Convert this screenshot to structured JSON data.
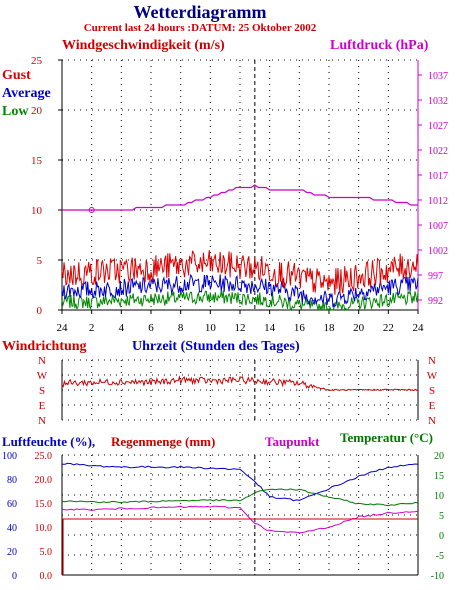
{
  "title": "Wetterdiagramm",
  "subtitle": "Current last 24 hours :DATUM: 25 Oktober 2002",
  "wind": {
    "label": "Windgeschwindigkeit (m/s)",
    "legend": [
      "Gust",
      "Average",
      "Low"
    ],
    "yticks": [
      "25",
      "20",
      "15",
      "10",
      "5",
      "0"
    ]
  },
  "pressure": {
    "label": "Luftdruck (hPa)",
    "yticks": [
      "1037",
      "1032",
      "1027",
      "1022",
      "1017",
      "1012",
      "1007",
      "1002",
      "997",
      "992"
    ]
  },
  "direction": {
    "label": "Windrichtung",
    "ticks": [
      "N",
      "W",
      "S",
      "E",
      "N"
    ]
  },
  "time": {
    "label": "Uhrzeit (Stunden des Tages)",
    "xticks": [
      "24",
      "2",
      "4",
      "6",
      "8",
      "10",
      "12",
      "14",
      "16",
      "18",
      "20",
      "22",
      "24"
    ]
  },
  "bottom": {
    "humidity_label": "Luftfeuchte (%),",
    "rain_label": "Regenmenge (mm)",
    "dew_label": "Taupunkt",
    "temp_label": "Temperatur (°C)",
    "humidity_ticks": [
      "100",
      "80",
      "60",
      "40",
      "20",
      "0"
    ],
    "rain_ticks": [
      "25.0",
      "20.0",
      "15.0",
      "10.0",
      "5.0",
      "0.0"
    ],
    "temp_ticks": [
      "20",
      "15",
      "10",
      "5",
      "0",
      "-5",
      "-10"
    ]
  },
  "colors": {
    "title": "#000080",
    "subtitle": "#cc0000",
    "wind_label": "#cc0000",
    "pressure": "#cc00cc",
    "gust": "#dd0000",
    "average": "#0000cc",
    "low": "#008800",
    "direction": "#cc0000",
    "time_label": "#0000cc",
    "humidity": "#0000cc",
    "rain": "#cc0000",
    "dew": "#cc00cc",
    "temperature": "#007700",
    "grid": "#000000"
  },
  "chart_data": [
    {
      "type": "line",
      "title": "Windgeschwindigkeit (m/s)",
      "xlabel": "Uhrzeit (Stunden des Tages)",
      "ylabel": "Windgeschwindigkeit (m/s)",
      "ylim": [
        0,
        25
      ],
      "x": [
        0,
        2,
        4,
        6,
        8,
        10,
        12,
        14,
        16,
        18,
        20,
        22,
        24
      ],
      "series": [
        {
          "name": "Gust",
          "values": [
            3.5,
            3.8,
            4.0,
            4.2,
            4.5,
            4.6,
            4.4,
            4.0,
            3.2,
            2.6,
            3.4,
            4.0,
            4.6
          ]
        },
        {
          "name": "Average",
          "values": [
            2.0,
            2.0,
            2.2,
            2.4,
            2.6,
            2.7,
            2.6,
            2.3,
            1.6,
            1.0,
            1.8,
            2.3,
            2.6
          ]
        },
        {
          "name": "Low",
          "values": [
            0.8,
            0.8,
            1.0,
            1.1,
            1.2,
            1.3,
            1.2,
            1.0,
            0.5,
            0.2,
            0.7,
            1.0,
            1.2
          ]
        }
      ]
    },
    {
      "type": "line",
      "title": "Luftdruck (hPa)",
      "ylabel": "Luftdruck (hPa)",
      "ylim": [
        990,
        1040
      ],
      "x": [
        0,
        2,
        4,
        6,
        8,
        10,
        11,
        12,
        13,
        14,
        16,
        17,
        18,
        20,
        22,
        23,
        24
      ],
      "series": [
        {
          "name": "Luftdruck",
          "values": [
            1010.0,
            1010.0,
            1010.0,
            1010.5,
            1011.0,
            1012.5,
            1013.5,
            1014.5,
            1014.8,
            1014.2,
            1014.0,
            1013.2,
            1012.6,
            1012.4,
            1012.0,
            1011.4,
            1011.0
          ]
        }
      ]
    },
    {
      "type": "line",
      "title": "Windrichtung",
      "ylim": [
        0,
        360
      ],
      "x": [
        0,
        2,
        4,
        6,
        8,
        10,
        12,
        14,
        16,
        17,
        18,
        20,
        22,
        24
      ],
      "series": [
        {
          "name": "Windrichtung",
          "values": [
            220,
            225,
            230,
            225,
            240,
            235,
            240,
            230,
            220,
            200,
            180,
            180,
            182,
            180
          ]
        }
      ]
    },
    {
      "type": "line",
      "title": "Luftfeuchte (%), Regenmenge (mm), Taupunkt, Temperatur (°C)",
      "x": [
        0,
        2,
        4,
        6,
        8,
        10,
        12,
        13,
        14,
        16,
        18,
        20,
        22,
        24
      ],
      "series": [
        {
          "name": "Luftfeuchte (%)",
          "values": [
            93,
            91,
            90,
            90,
            90,
            89,
            88,
            78,
            65,
            62,
            72,
            82,
            90,
            92
          ]
        },
        {
          "name": "Taupunkt",
          "values": [
            6.5,
            6.3,
            6.6,
            6.8,
            7.0,
            7.1,
            6.8,
            3.0,
            1.0,
            0.5,
            2.0,
            4.5,
            5.5,
            6.0
          ]
        },
        {
          "name": "Temperatur (°C)",
          "values": [
            8.5,
            8.3,
            8.2,
            8.4,
            8.6,
            8.7,
            8.6,
            10.5,
            11.5,
            11.3,
            9.5,
            7.8,
            7.5,
            8.0
          ]
        },
        {
          "name": "Regenmenge (mm)",
          "values": [
            14.0,
            14.0,
            14.0,
            14.0,
            14.0,
            14.0,
            14.0,
            14.0,
            14.0,
            14.0,
            14.0,
            14.0,
            14.0,
            14.0
          ]
        }
      ]
    }
  ]
}
